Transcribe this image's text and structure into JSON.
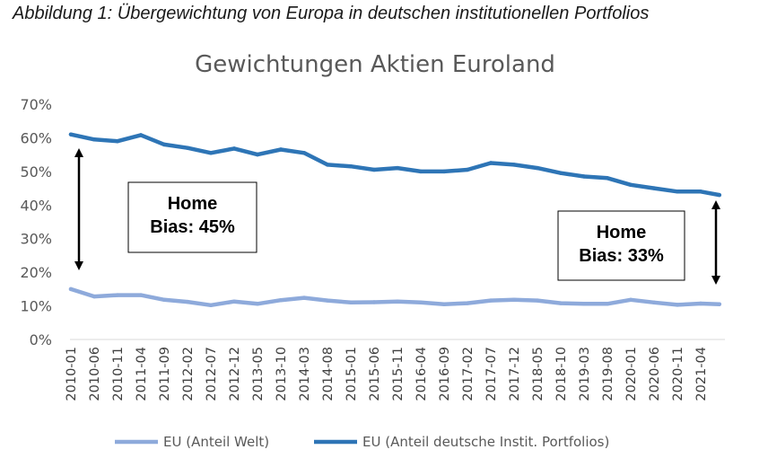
{
  "caption": "Abbildung 1: Übergewichtung von Europa in deutschen institutionellen Portfolios",
  "chart_data": {
    "type": "line",
    "title": "Gewichtungen Aktien Euroland",
    "xlabel": "",
    "ylabel": "",
    "ylim": [
      0,
      70
    ],
    "y_ticks": [
      "0%",
      "10%",
      "20%",
      "30%",
      "40%",
      "50%",
      "60%",
      "70%"
    ],
    "grid": false,
    "legend_position": "bottom",
    "x_tick_labels": [
      "2010-01",
      "2010-06",
      "2010-11",
      "2011-04",
      "2011-09",
      "2012-02",
      "2012-07",
      "2012-12",
      "2013-05",
      "2013-10",
      "2014-03",
      "2014-08",
      "2015-01",
      "2015-06",
      "2015-11",
      "2016-04",
      "2016-09",
      "2017-02",
      "2017-07",
      "2017-12",
      "2018-05",
      "2018-10",
      "2019-03",
      "2019-08",
      "2020-01",
      "2020-06",
      "2020-11",
      "2021-04"
    ],
    "series": [
      {
        "name": "EU (Anteil Welt)",
        "color": "#8eaadb",
        "x": [
          "2010-01",
          "2010-06",
          "2010-11",
          "2011-04",
          "2011-09",
          "2012-02",
          "2012-07",
          "2012-12",
          "2013-05",
          "2013-10",
          "2014-03",
          "2014-08",
          "2015-01",
          "2015-06",
          "2015-11",
          "2016-04",
          "2016-09",
          "2017-02",
          "2017-07",
          "2017-12",
          "2018-05",
          "2018-10",
          "2019-03",
          "2019-08",
          "2020-01",
          "2020-06",
          "2020-11",
          "2021-04",
          "2021-08"
        ],
        "values": [
          15,
          12.8,
          13.2,
          13.2,
          11.8,
          11.2,
          10.2,
          11.3,
          10.6,
          11.7,
          12.4,
          11.6,
          11.0,
          11.1,
          11.3,
          11.0,
          10.5,
          10.8,
          11.6,
          11.8,
          11.6,
          10.8,
          10.6,
          10.6,
          11.8,
          11.0,
          10.3,
          10.7,
          10.5
        ]
      },
      {
        "name": "EU (Anteil deutsche Instit. Portfolios)",
        "color": "#2e75b6",
        "x": [
          "2010-01",
          "2010-06",
          "2010-11",
          "2011-04",
          "2011-09",
          "2012-02",
          "2012-07",
          "2012-12",
          "2013-05",
          "2013-10",
          "2014-03",
          "2014-08",
          "2015-01",
          "2015-06",
          "2015-11",
          "2016-04",
          "2016-09",
          "2017-02",
          "2017-07",
          "2017-12",
          "2018-05",
          "2018-10",
          "2019-03",
          "2019-08",
          "2020-01",
          "2020-06",
          "2020-11",
          "2021-04",
          "2021-08"
        ],
        "values": [
          61,
          59.5,
          59.0,
          60.8,
          58.0,
          57.0,
          55.5,
          56.8,
          55.0,
          56.5,
          55.5,
          52.0,
          51.5,
          50.5,
          51.0,
          50.0,
          50.0,
          50.5,
          52.5,
          52.0,
          51.0,
          49.5,
          48.5,
          48.0,
          46.0,
          45.0,
          44.0,
          44.0,
          43.0
        ]
      }
    ],
    "annotations": [
      {
        "label": "Home\nBias: 45%",
        "line1": "Home",
        "line2": "Bias: 45%",
        "at": "2010-01",
        "from": 15,
        "to": 60
      },
      {
        "label": "Home\nBias: 33%",
        "line1": "Home",
        "line2": "Bias: 33%",
        "at": "2021-08",
        "from": 10.5,
        "to": 43
      }
    ]
  }
}
